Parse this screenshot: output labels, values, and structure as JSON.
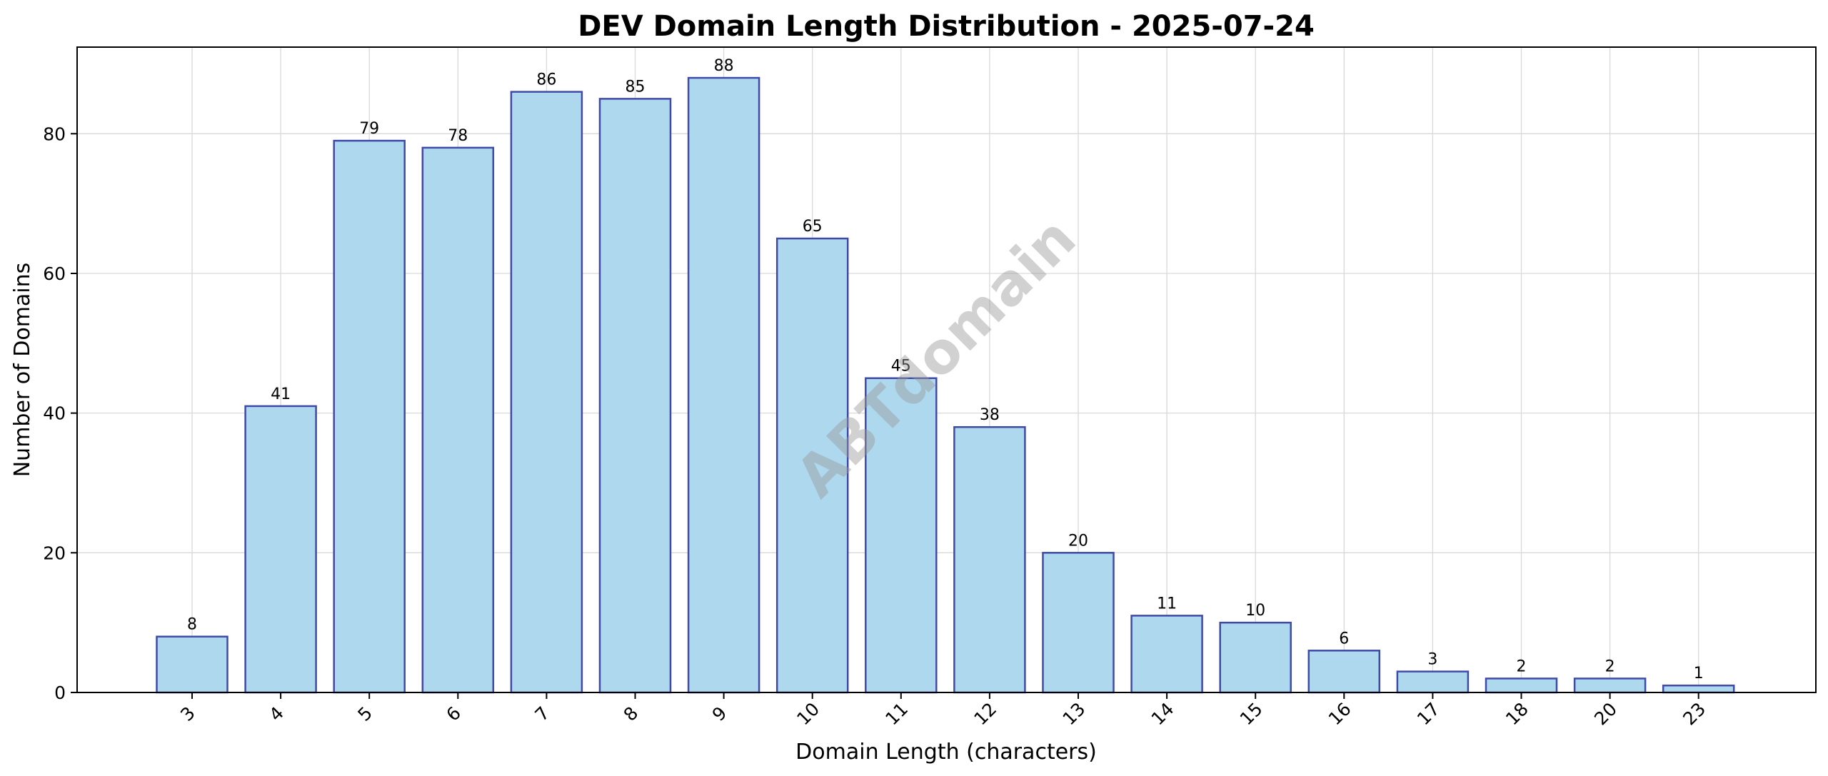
{
  "chart_data": {
    "type": "bar",
    "title": "DEV Domain Length Distribution - 2025-07-24",
    "xlabel": "Domain Length (characters)",
    "ylabel": "Number of Domains",
    "categories": [
      "3",
      "4",
      "5",
      "6",
      "7",
      "8",
      "9",
      "10",
      "11",
      "12",
      "13",
      "14",
      "15",
      "16",
      "17",
      "18",
      "20",
      "23"
    ],
    "values": [
      8,
      41,
      79,
      78,
      86,
      85,
      88,
      65,
      45,
      38,
      20,
      11,
      10,
      6,
      3,
      2,
      2,
      1
    ],
    "data_labels": [
      "8",
      "41",
      "79",
      "78",
      "86",
      "85",
      "88",
      "65",
      "45",
      "38",
      "20",
      "11",
      "10",
      "6",
      "3",
      "2",
      "2",
      "1"
    ],
    "ylim": [
      0,
      92.4
    ],
    "yticks": [
      0,
      20,
      40,
      60,
      80
    ],
    "ytick_labels": [
      "0",
      "20",
      "40",
      "60",
      "80"
    ],
    "grid": true,
    "x_tick_rotation": -45,
    "bar_color": "#add8ee",
    "bar_edge_color": "#3f4aa8",
    "watermark": "ABTdomain"
  }
}
